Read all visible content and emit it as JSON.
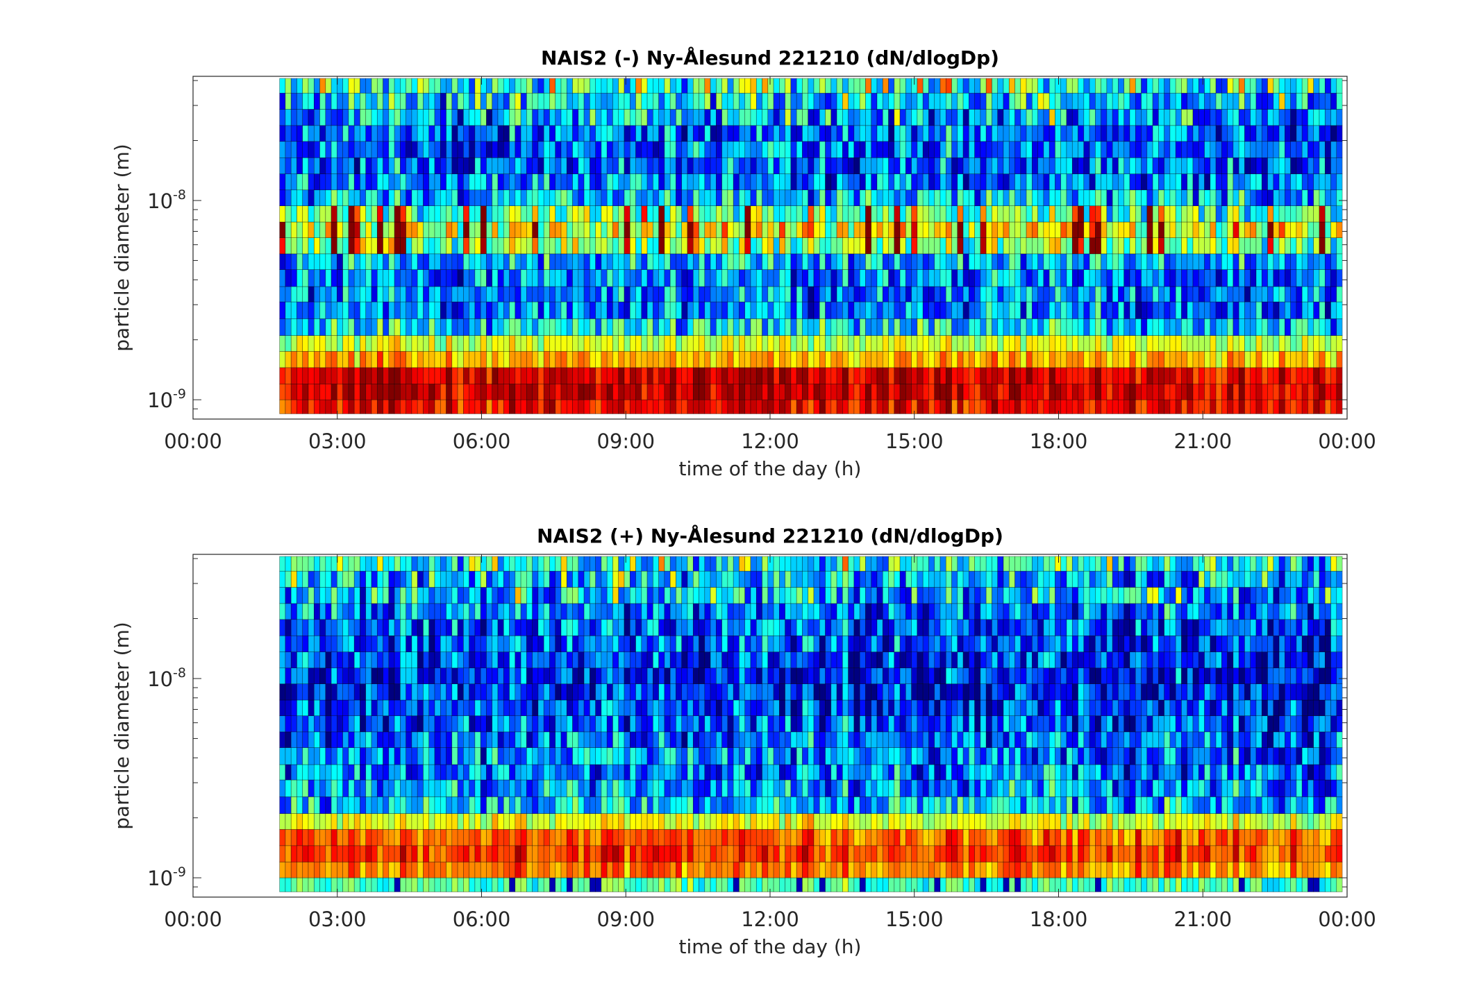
{
  "chart_data": [
    {
      "type": "heatmap",
      "title": "NAIS2 (-) Ny-Ålesund 221210 (dN/dlogDp)",
      "xlabel": "time of the day (h)",
      "ylabel": "particle diameter (m)",
      "x_ticks": [
        "00:00",
        "03:00",
        "06:00",
        "09:00",
        "12:00",
        "15:00",
        "18:00",
        "21:00",
        "00:00"
      ],
      "y_ticks": [
        {
          "base": "10",
          "exp": "-9"
        },
        {
          "base": "10",
          "exp": "-8"
        }
      ],
      "xlim_hours": [
        0,
        24
      ],
      "ylim_m": [
        8e-10,
        4.2e-08
      ],
      "y_scale": "log",
      "data_start_hour": 1.8,
      "data_end_hour": 23.9,
      "colormap": "jet",
      "size_bins_m": [
        8.5e-10,
        1e-09,
        1.2e-09,
        1.45e-09,
        1.75e-09,
        2.1e-09,
        2.55e-09,
        3.1e-09,
        3.7e-09,
        4.5e-09,
        5.4e-09,
        6.5e-09,
        7.8e-09,
        9.4e-09,
        1.13e-08,
        1.36e-08,
        1.64e-08,
        1.98e-08,
        2.38e-08,
        2.87e-08,
        3.46e-08,
        4.1e-08
      ],
      "mean_level_profile": [
        0.88,
        0.92,
        0.9,
        0.7,
        0.58,
        0.35,
        0.25,
        0.25,
        0.25,
        0.3,
        0.5,
        0.6,
        0.45,
        0.3,
        0.25,
        0.22,
        0.22,
        0.22,
        0.25,
        0.3,
        0.38,
        0.45
      ],
      "description": "mode near 1e-9 m (red), intermittent ion bursts near 6e-9 m"
    },
    {
      "type": "heatmap",
      "title": "NAIS2 (+) Ny-Ålesund 221210 (dN/dlogDp)",
      "xlabel": "time of the day (h)",
      "ylabel": "particle diameter (m)",
      "x_ticks": [
        "00:00",
        "03:00",
        "06:00",
        "09:00",
        "12:00",
        "15:00",
        "18:00",
        "21:00",
        "00:00"
      ],
      "y_ticks": [
        {
          "base": "10",
          "exp": "-9"
        },
        {
          "base": "10",
          "exp": "-8"
        }
      ],
      "xlim_hours": [
        0,
        24
      ],
      "ylim_m": [
        8e-10,
        4.2e-08
      ],
      "y_scale": "log",
      "data_start_hour": 1.8,
      "data_end_hour": 23.9,
      "colormap": "jet",
      "size_bins_m": [
        8.5e-10,
        1e-09,
        1.2e-09,
        1.45e-09,
        1.75e-09,
        2.1e-09,
        2.55e-09,
        3.1e-09,
        3.7e-09,
        4.5e-09,
        5.4e-09,
        6.5e-09,
        7.8e-09,
        9.4e-09,
        1.13e-08,
        1.36e-08,
        1.64e-08,
        1.98e-08,
        2.38e-08,
        2.87e-08,
        3.46e-08,
        4.1e-08
      ],
      "mean_level_profile": [
        0.45,
        0.75,
        0.82,
        0.78,
        0.6,
        0.32,
        0.28,
        0.25,
        0.25,
        0.22,
        0.2,
        0.18,
        0.15,
        0.15,
        0.18,
        0.2,
        0.22,
        0.25,
        0.28,
        0.3,
        0.35,
        0.42
      ],
      "description": "mode near 1.1e-9 m (orange), low concentrations elsewhere"
    }
  ]
}
